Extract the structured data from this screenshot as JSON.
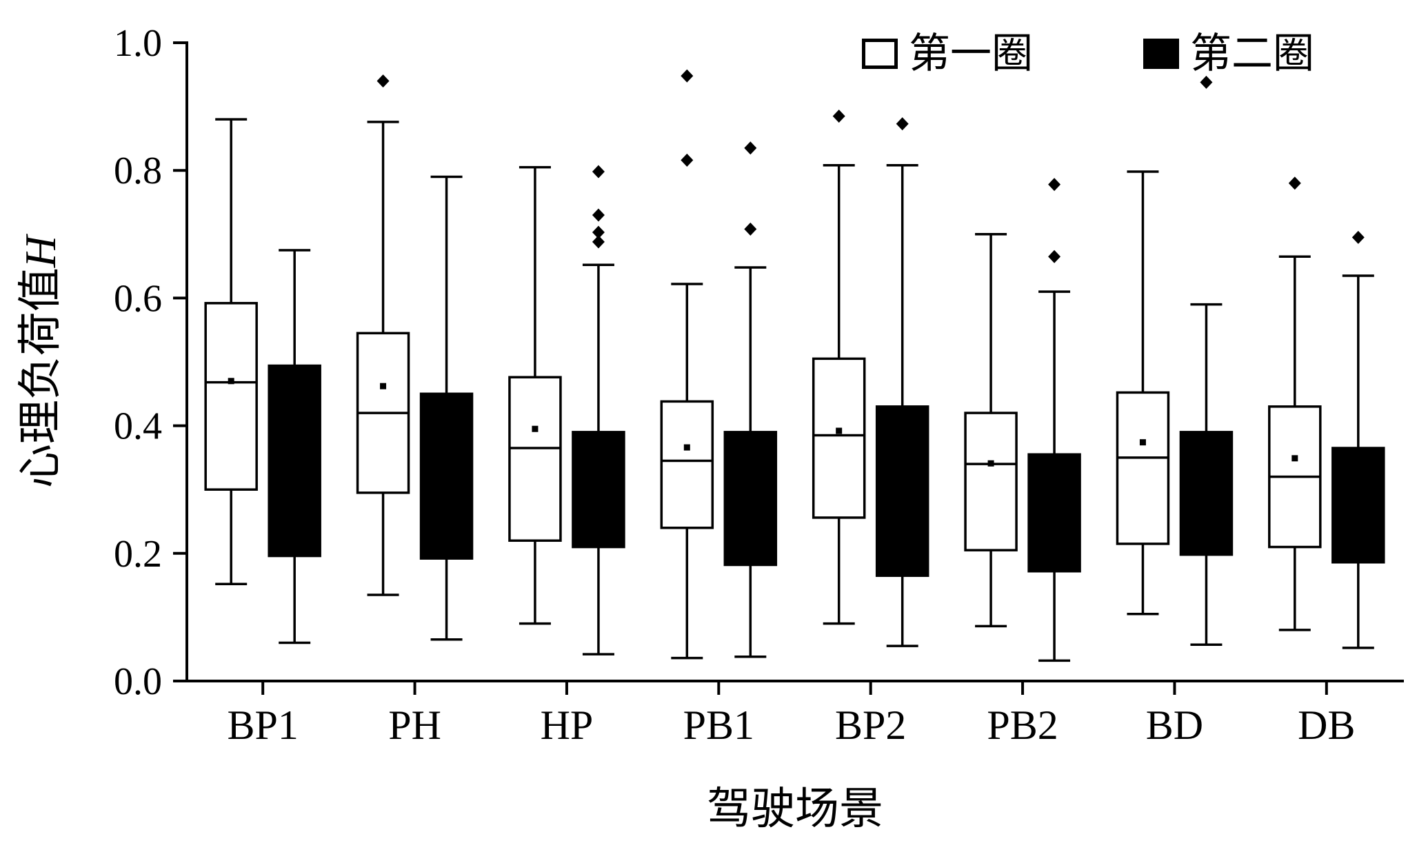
{
  "figure": {
    "background": "#ffffff",
    "ink_color": "#000000"
  },
  "legend": {
    "position": "top-right",
    "items": [
      {
        "label": "第一圈",
        "fill": "#ffffff",
        "stroke": "#000000"
      },
      {
        "label": "第二圈",
        "fill": "#000000",
        "stroke": "#000000"
      }
    ]
  },
  "chart_data": {
    "type": "boxplot",
    "title": "",
    "xlabel": "驾驶场景",
    "ylabel": "心理负荷值H",
    "ylabel_cn": "心理负荷值",
    "ylabel_var": "H",
    "ylim": [
      0.0,
      1.0
    ],
    "yticks": [
      0.0,
      0.2,
      0.4,
      0.6,
      0.8,
      1.0
    ],
    "ytick_labels": [
      "0.0",
      "0.2",
      "0.4",
      "0.6",
      "0.8",
      "1.0"
    ],
    "grid": false,
    "legend_position": "top-right",
    "categories": [
      "BP1",
      "PH",
      "HP",
      "PB1",
      "BP2",
      "PB2",
      "BD",
      "DB"
    ],
    "series": [
      {
        "name": "第一圈",
        "fill": "#ffffff",
        "stroke": "#000000",
        "boxes": [
          {
            "category": "BP1",
            "whisker_low": 0.152,
            "q1": 0.3,
            "median": 0.468,
            "mean": 0.47,
            "q3": 0.592,
            "whisker_high": 0.88,
            "outliers": []
          },
          {
            "category": "PH",
            "whisker_low": 0.135,
            "q1": 0.295,
            "median": 0.42,
            "mean": 0.462,
            "q3": 0.545,
            "whisker_high": 0.876,
            "outliers": [
              0.94
            ]
          },
          {
            "category": "HP",
            "whisker_low": 0.09,
            "q1": 0.22,
            "median": 0.365,
            "mean": 0.395,
            "q3": 0.476,
            "whisker_high": 0.805,
            "outliers": []
          },
          {
            "category": "PB1",
            "whisker_low": 0.036,
            "q1": 0.24,
            "median": 0.345,
            "mean": 0.366,
            "q3": 0.438,
            "whisker_high": 0.622,
            "outliers": [
              0.816,
              0.948
            ]
          },
          {
            "category": "BP2",
            "whisker_low": 0.09,
            "q1": 0.256,
            "median": 0.385,
            "mean": 0.392,
            "q3": 0.505,
            "whisker_high": 0.808,
            "outliers": [
              0.885
            ]
          },
          {
            "category": "PB2",
            "whisker_low": 0.086,
            "q1": 0.205,
            "median": 0.34,
            "mean": 0.341,
            "q3": 0.42,
            "whisker_high": 0.7,
            "outliers": []
          },
          {
            "category": "BD",
            "whisker_low": 0.105,
            "q1": 0.215,
            "median": 0.35,
            "mean": 0.374,
            "q3": 0.452,
            "whisker_high": 0.798,
            "outliers": []
          },
          {
            "category": "DB",
            "whisker_low": 0.08,
            "q1": 0.21,
            "median": 0.32,
            "mean": 0.349,
            "q3": 0.43,
            "whisker_high": 0.665,
            "outliers": [
              0.78
            ]
          }
        ]
      },
      {
        "name": "第二圈",
        "fill": "#000000",
        "stroke": "#000000",
        "boxes": [
          {
            "category": "BP1",
            "whisker_low": 0.06,
            "q1": 0.196,
            "median": null,
            "mean": null,
            "q3": 0.494,
            "whisker_high": 0.675,
            "outliers": []
          },
          {
            "category": "PH",
            "whisker_low": 0.065,
            "q1": 0.192,
            "median": null,
            "mean": null,
            "q3": 0.45,
            "whisker_high": 0.79,
            "outliers": []
          },
          {
            "category": "HP",
            "whisker_low": 0.042,
            "q1": 0.21,
            "median": null,
            "mean": null,
            "q3": 0.39,
            "whisker_high": 0.652,
            "outliers": [
              0.688,
              0.703,
              0.73,
              0.798
            ]
          },
          {
            "category": "PB1",
            "whisker_low": 0.038,
            "q1": 0.182,
            "median": null,
            "mean": null,
            "q3": 0.39,
            "whisker_high": 0.648,
            "outliers": [
              0.708,
              0.835
            ]
          },
          {
            "category": "BP2",
            "whisker_low": 0.055,
            "q1": 0.165,
            "median": null,
            "mean": null,
            "q3": 0.43,
            "whisker_high": 0.808,
            "outliers": [
              0.873
            ]
          },
          {
            "category": "PB2",
            "whisker_low": 0.032,
            "q1": 0.172,
            "median": null,
            "mean": null,
            "q3": 0.355,
            "whisker_high": 0.61,
            "outliers": [
              0.665,
              0.778
            ]
          },
          {
            "category": "BD",
            "whisker_low": 0.057,
            "q1": 0.198,
            "median": null,
            "mean": null,
            "q3": 0.39,
            "whisker_high": 0.59,
            "outliers": [
              0.938
            ]
          },
          {
            "category": "DB",
            "whisker_low": 0.052,
            "q1": 0.186,
            "median": null,
            "mean": null,
            "q3": 0.365,
            "whisker_high": 0.635,
            "outliers": [
              0.695
            ]
          }
        ]
      }
    ]
  }
}
